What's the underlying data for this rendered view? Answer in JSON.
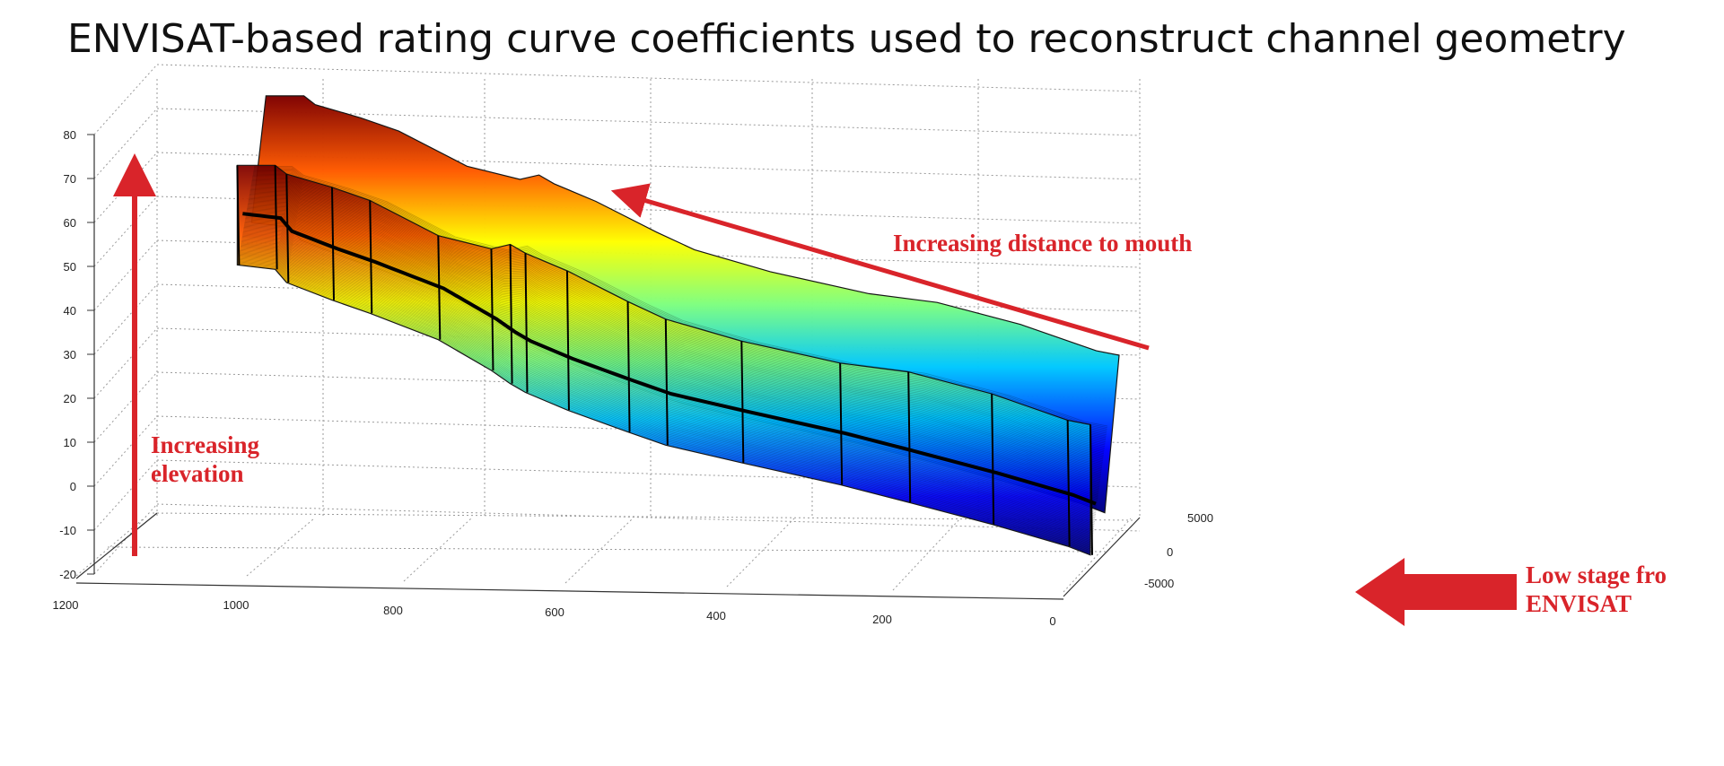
{
  "slide": {
    "title": "ENVISAT-based rating curve coefficients used to reconstruct channel geometry"
  },
  "chart_data": {
    "type": "surface3d",
    "title": "",
    "xlabel": "",
    "ylabel": "",
    "zlabel": "",
    "x_ticks": [
      "1200",
      "1000",
      "800",
      "600",
      "400",
      "200",
      "0"
    ],
    "y_ticks": [
      "-5000",
      "0",
      "5000"
    ],
    "z_ticks": [
      "80",
      "70",
      "60",
      "50",
      "40",
      "30",
      "20",
      "10",
      "0",
      "-10",
      "-20"
    ],
    "zlim": [
      -20,
      80
    ],
    "xlim": [
      0,
      1200
    ],
    "ylim": [
      -5000,
      5000
    ],
    "colormap": "jet",
    "grid": true,
    "cross_sections": [
      {
        "x": 1125,
        "bed": 62,
        "top": 79
      },
      {
        "x": 1075,
        "bed": 61,
        "top": 79
      },
      {
        "x": 1060,
        "bed": 58,
        "top": 77
      },
      {
        "x": 1000,
        "bed": 54,
        "top": 74
      },
      {
        "x": 950,
        "bed": 51,
        "top": 71
      },
      {
        "x": 860,
        "bed": 45,
        "top": 63
      },
      {
        "x": 790,
        "bed": 38,
        "top": 60
      },
      {
        "x": 765,
        "bed": 35,
        "top": 61
      },
      {
        "x": 745,
        "bed": 33,
        "top": 59
      },
      {
        "x": 690,
        "bed": 29,
        "top": 55
      },
      {
        "x": 610,
        "bed": 24,
        "top": 48
      },
      {
        "x": 560,
        "bed": 21,
        "top": 44
      },
      {
        "x": 460,
        "bed": 17,
        "top": 39
      },
      {
        "x": 330,
        "bed": 12,
        "top": 34
      },
      {
        "x": 240,
        "bed": 8,
        "top": 32
      },
      {
        "x": 130,
        "bed": 3,
        "top": 27
      },
      {
        "x": 30,
        "bed": -2,
        "top": 21
      },
      {
        "x": 0,
        "bed": -4,
        "top": 20
      }
    ],
    "annotations": [
      {
        "id": "distance",
        "lines": [
          "Increasing distance to mouth"
        ]
      },
      {
        "id": "elevation",
        "lines": [
          "Increasing",
          "elevation"
        ]
      },
      {
        "id": "envisat",
        "lines": [
          "Low stage fro",
          "ENVISAT"
        ]
      }
    ]
  },
  "colors": {
    "annotation_red": "#d9242a",
    "axis": "#222222",
    "grid": "#9a9a9a"
  }
}
